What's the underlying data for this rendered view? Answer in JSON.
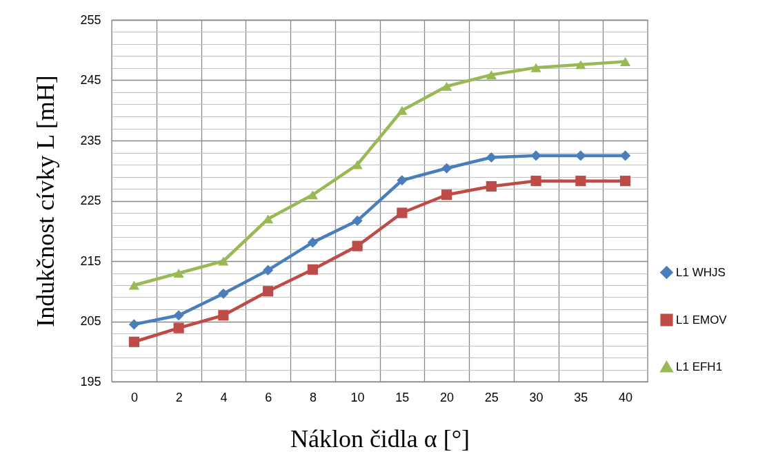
{
  "chart_data": {
    "type": "line",
    "xlabel": "Náklon čidla α [°]",
    "ylabel": "Indukčnost cívky L [mH]",
    "categories": [
      "0",
      "2",
      "4",
      "6",
      "8",
      "10",
      "15",
      "20",
      "25",
      "30",
      "35",
      "40"
    ],
    "series": [
      {
        "name": "L1 WHJS",
        "color": "#4a7ebb",
        "marker": "diamond",
        "values": [
          204.5,
          206,
          209.6,
          213.5,
          218.1,
          221.7,
          228.4,
          230.4,
          232.2,
          232.5,
          232.5,
          232.5
        ]
      },
      {
        "name": "L1 EMOV",
        "color": "#be4b48",
        "marker": "square",
        "values": [
          201.6,
          203.9,
          206,
          210,
          213.6,
          217.5,
          223,
          226,
          227.4,
          228.3,
          228.3,
          228.3
        ]
      },
      {
        "name": "L1 EFH1",
        "color": "#98b954",
        "marker": "triangle",
        "values": [
          211,
          213,
          215,
          222,
          226,
          231,
          240,
          244,
          245.9,
          247.1,
          247.6,
          248.1
        ]
      }
    ],
    "ylim": [
      195,
      255
    ],
    "yticks": [
      195,
      {
        "value": 197,
        "label": null
      },
      {
        "value": 199,
        "label": null
      },
      {
        "value": 201,
        "label": null
      },
      {
        "value": 203,
        "label": null
      },
      205,
      {
        "value": 207,
        "label": null
      },
      {
        "value": 209,
        "label": null
      },
      {
        "value": 211,
        "label": null
      },
      {
        "value": 213,
        "label": null
      },
      215,
      {
        "value": 217,
        "label": null
      },
      {
        "value": 219,
        "label": null
      },
      {
        "value": 221,
        "label": null
      },
      {
        "value": 223,
        "label": null
      },
      225,
      {
        "value": 227,
        "label": null
      },
      {
        "value": 229,
        "label": null
      },
      {
        "value": 231,
        "label": null
      },
      {
        "value": 233,
        "label": null
      },
      235,
      {
        "value": 237,
        "label": null
      },
      {
        "value": 239,
        "label": null
      },
      {
        "value": 241,
        "label": null
      },
      {
        "value": 243,
        "label": null
      },
      245,
      {
        "value": 247,
        "label": null
      },
      {
        "value": 249,
        "label": null
      },
      {
        "value": 251,
        "label": null
      },
      {
        "value": 253,
        "label": null
      },
      255
    ],
    "grid": true,
    "legend": "right",
    "line_style": "solid"
  }
}
